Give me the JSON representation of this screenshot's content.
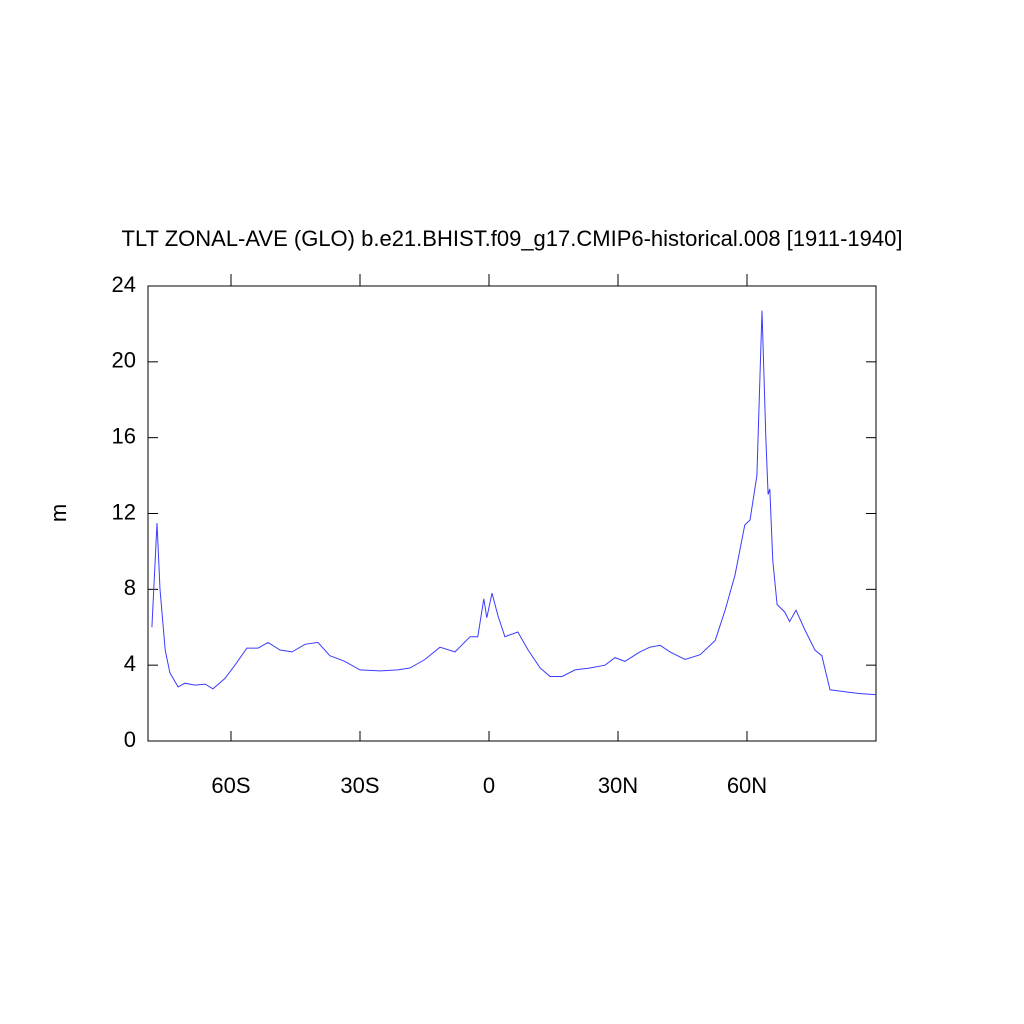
{
  "chart_data": {
    "type": "line",
    "title": "TLT ZONAL-AVE (GLO) b.e21.BHIST.f09_g17.CMIP6-historical.008 [1911-1940]",
    "y_label": "m",
    "x": [
      -78.4,
      -77.2,
      -76.5,
      -75.3,
      -74.2,
      -72.3,
      -70.7,
      -68.4,
      -66,
      -64.2,
      -61.4,
      -59.1,
      -56.3,
      -53.7,
      -51.4,
      -48.6,
      -45.8,
      -42.8,
      -39.8,
      -37,
      -33.5,
      -30,
      -25.3,
      -21.2,
      -18.4,
      -14.9,
      -11.4,
      -7.9,
      -4.4,
      -2.6,
      -1.2,
      -0.5,
      0.7,
      2.1,
      3.7,
      6.7,
      9.1,
      11.9,
      14.2,
      17,
      20,
      23.5,
      27,
      29.3,
      31.6,
      35.1,
      37.4,
      39.8,
      42.1,
      45.6,
      49.1,
      52.6,
      54.9,
      57.2,
      59.5,
      60.7,
      62.3,
      63.5,
      64.4,
      64.9,
      65.3,
      66,
      67,
      68.8,
      69.9,
      71.4,
      73.5,
      75.8,
      77.4,
      79.3,
      82.8,
      86.3,
      90
    ],
    "series": [
      {
        "color": "#3c3cff",
        "values": [
          6.0,
          11.5,
          8.0,
          4.8,
          3.6,
          2.85,
          3.05,
          2.95,
          3.0,
          2.75,
          3.3,
          4.0,
          4.9,
          4.9,
          5.2,
          4.8,
          4.7,
          5.1,
          5.2,
          4.5,
          4.2,
          3.75,
          3.7,
          3.75,
          3.85,
          4.3,
          4.95,
          4.7,
          5.5,
          5.5,
          7.5,
          6.5,
          7.8,
          6.6,
          5.5,
          5.75,
          4.8,
          3.85,
          3.4,
          3.4,
          3.75,
          3.85,
          4.0,
          4.4,
          4.2,
          4.7,
          4.95,
          5.05,
          4.7,
          4.3,
          4.55,
          5.3,
          6.9,
          8.75,
          11.4,
          11.65,
          14.0,
          22.7,
          15.9,
          13.0,
          13.3,
          9.5,
          7.2,
          6.8,
          6.3,
          6.9,
          5.85,
          4.8,
          4.5,
          2.7,
          2.6,
          2.5,
          2.45
        ]
      }
    ],
    "xlim": [
      -79.3,
      90
    ],
    "ylim": [
      0,
      24
    ],
    "xticks": [
      {
        "value": -60,
        "label": "60S"
      },
      {
        "value": -30,
        "label": "30S"
      },
      0,
      {
        "value": 30,
        "label": "30N"
      },
      {
        "value": 60,
        "label": "60N"
      }
    ],
    "yticks": [
      0,
      4,
      8,
      12,
      16,
      20,
      24
    ]
  }
}
